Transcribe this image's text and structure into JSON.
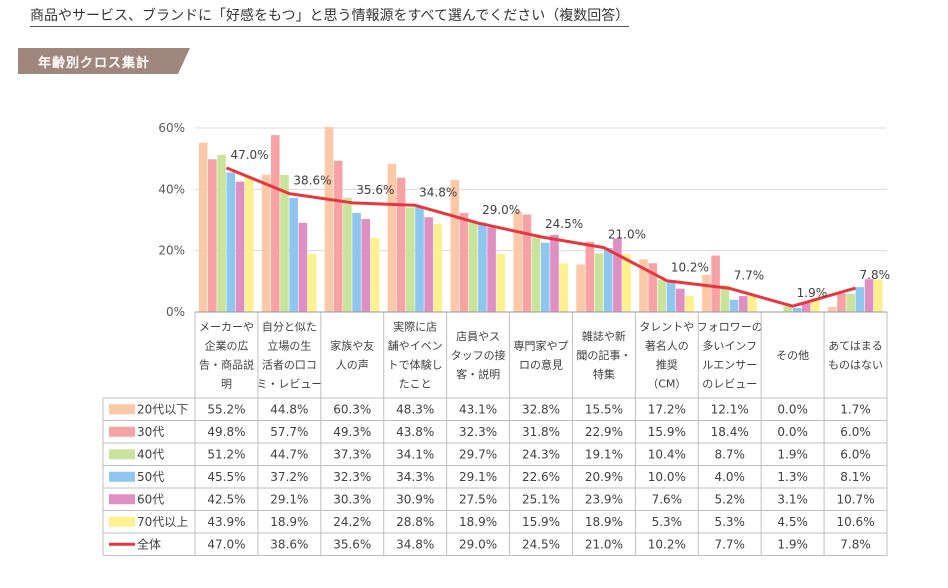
{
  "page": {
    "question": "商品やサービス、ブランドに「好感をもつ」と思う情報源をすべて選んでください（複数回答）",
    "section_title": "年齢別クロス集計"
  },
  "chart_data": {
    "type": "bar",
    "ylim": [
      0,
      60
    ],
    "y_ticks": [
      "0%",
      "20%",
      "40%",
      "60%"
    ],
    "grid": true,
    "legend_placement": "left-table",
    "categories": [
      [
        "メーカーや",
        "企業の広",
        "告・商品説",
        "明"
      ],
      [
        "自分と似た",
        "立場の生",
        "活者の口コ",
        "ミ・レビュー"
      ],
      [
        "家族や友",
        "人の声"
      ],
      [
        "実際に店",
        "舗やイベン",
        "トで体験し",
        "たこと"
      ],
      [
        "店員やス",
        "タッフの接",
        "客・説明"
      ],
      [
        "専門家やプ",
        "ロの意見"
      ],
      [
        "雑誌や新",
        "聞の記事・",
        "特集"
      ],
      [
        "タレントや",
        "著名人の",
        "推奨",
        "（CM）"
      ],
      [
        "フォロワーの",
        "多いインフ",
        "ルエンサー",
        "のレビュー"
      ],
      [
        "その他"
      ],
      [
        "あてはまる",
        "ものはない"
      ]
    ],
    "series": [
      {
        "name": "20代以下",
        "color": "#fbc8a8",
        "values": [
          55.2,
          44.8,
          60.3,
          48.3,
          43.1,
          32.8,
          15.5,
          17.2,
          12.1,
          0.0,
          1.7
        ],
        "labels": [
          "55.2%",
          "44.8%",
          "60.3%",
          "48.3%",
          "43.1%",
          "32.8%",
          "15.5%",
          "17.2%",
          "12.1%",
          "0.0%",
          "1.7%"
        ]
      },
      {
        "name": "30代",
        "color": "#f7a3a6",
        "values": [
          49.8,
          57.7,
          49.3,
          43.8,
          32.3,
          31.8,
          22.9,
          15.9,
          18.4,
          0.0,
          6.0
        ],
        "labels": [
          "49.8%",
          "57.7%",
          "49.3%",
          "43.8%",
          "32.3%",
          "31.8%",
          "22.9%",
          "15.9%",
          "18.4%",
          "0.0%",
          "6.0%"
        ]
      },
      {
        "name": "40代",
        "color": "#c8e39a",
        "values": [
          51.2,
          44.7,
          37.3,
          34.1,
          29.7,
          24.3,
          19.1,
          10.4,
          8.7,
          1.9,
          6.0
        ],
        "labels": [
          "51.2%",
          "44.7%",
          "37.3%",
          "34.1%",
          "29.7%",
          "24.3%",
          "19.1%",
          "10.4%",
          "8.7%",
          "1.9%",
          "6.0%"
        ]
      },
      {
        "name": "50代",
        "color": "#8ec6ef",
        "values": [
          45.5,
          37.2,
          32.3,
          34.3,
          29.1,
          22.6,
          20.9,
          10.0,
          4.0,
          1.3,
          8.1
        ],
        "labels": [
          "45.5%",
          "37.2%",
          "32.3%",
          "34.3%",
          "29.1%",
          "22.6%",
          "20.9%",
          "10.0%",
          "4.0%",
          "1.3%",
          "8.1%"
        ]
      },
      {
        "name": "60代",
        "color": "#e08fc2",
        "values": [
          42.5,
          29.1,
          30.3,
          30.9,
          27.5,
          25.1,
          23.9,
          7.6,
          5.2,
          3.1,
          10.7
        ],
        "labels": [
          "42.5%",
          "29.1%",
          "30.3%",
          "30.9%",
          "27.5%",
          "25.1%",
          "23.9%",
          "7.6%",
          "5.2%",
          "3.1%",
          "10.7%"
        ]
      },
      {
        "name": "70代以上",
        "color": "#fdf08f",
        "values": [
          43.9,
          18.9,
          24.2,
          28.8,
          18.9,
          15.9,
          18.9,
          5.3,
          5.3,
          4.5,
          10.6
        ],
        "labels": [
          "43.9%",
          "18.9%",
          "24.2%",
          "28.8%",
          "18.9%",
          "15.9%",
          "18.9%",
          "5.3%",
          "5.3%",
          "4.5%",
          "10.6%"
        ]
      }
    ],
    "total": {
      "name": "全体",
      "color": "#e8363f",
      "values": [
        47.0,
        38.6,
        35.6,
        34.8,
        29.0,
        24.5,
        21.0,
        10.2,
        7.7,
        1.9,
        7.8
      ],
      "labels": [
        "47.0%",
        "38.6%",
        "35.6%",
        "34.8%",
        "29.0%",
        "24.5%",
        "21.0%",
        "10.2%",
        "7.7%",
        "1.9%",
        "7.8%"
      ]
    }
  },
  "colors": {
    "tab": "#a0877e",
    "grid": "#d9d9d9",
    "axis_text": "#595959"
  }
}
